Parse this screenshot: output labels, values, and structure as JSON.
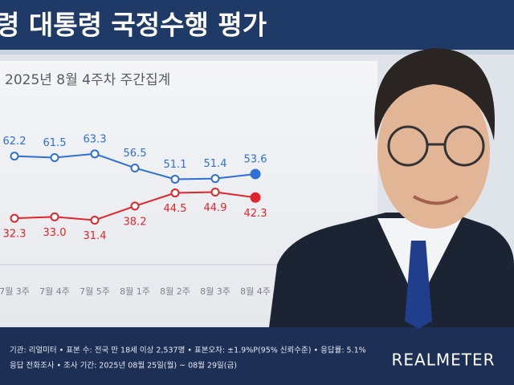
{
  "chart_data": {
    "type": "line",
    "title": "령 대통령 국정수행 평가",
    "subtitle": "2025년 8월 4주차 주간집계",
    "categories": [
      "7월 3주",
      "7월 4주",
      "7월 5주",
      "8월 1주",
      "8월 2주",
      "8월 3주",
      "8월 4주"
    ],
    "series": [
      {
        "color": "#2f6fd6",
        "values": [
          62.2,
          61.5,
          63.3,
          56.5,
          51.1,
          51.4,
          53.6
        ],
        "value_labels": [
          "62.2",
          "61.5",
          "63.3",
          "56.5",
          "51.1",
          "51.4",
          "53.6"
        ]
      },
      {
        "color": "#e0262b",
        "values": [
          32.3,
          33.0,
          31.4,
          38.2,
          44.5,
          44.9,
          42.3
        ],
        "value_labels": [
          "32.3",
          "33.0",
          "31.4",
          "38.2",
          "44.5",
          "44.9",
          "42.3"
        ]
      }
    ],
    "ylim": [
      10,
      91
    ]
  },
  "footer": {
    "line1": "기관: 리얼미터 • 표본 수: 전국 만 18세 이상 2,537명 • 표본오차: ±1.9%P(95% 신뢰수준) • 응답률: 5.1%",
    "line2": "응답 전화조사 • 조사 기간: 2025년 08월 25일(월) ~ 08월 29일(금)",
    "logo": "REALMETER"
  }
}
